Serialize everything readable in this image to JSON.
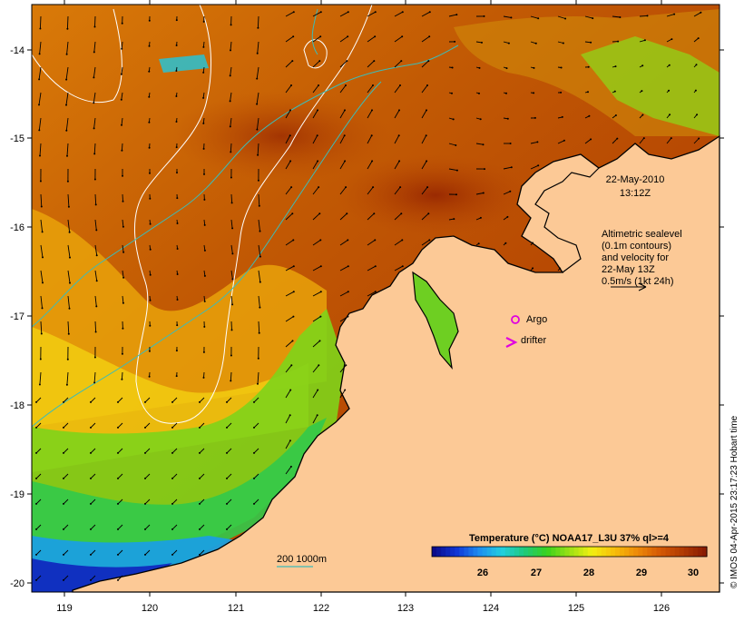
{
  "map": {
    "date_line1": "22-May-2010",
    "date_line2": "13:12Z",
    "altimetry_lines": [
      "Altimetric sealevel",
      "(0.1m contours)",
      "and velocity for",
      "22-May 13Z",
      "0.5m/s (1kt 24h)"
    ],
    "argo_label": "Argo",
    "drifter_label": "drifter",
    "depth_label": "200  1000m",
    "legend_title": "Temperature (°C) NOAA17_L3U 37% ql>=4",
    "legend_ticks": [
      "26",
      "27",
      "28",
      "29",
      "30"
    ],
    "legend_colors": [
      "#0b0b8a",
      "#1036d6",
      "#1e8ef0",
      "#22cfe0",
      "#1fc97a",
      "#38d21e",
      "#9be015",
      "#f2ef12",
      "#f7be0a",
      "#ee8a08",
      "#d55a05",
      "#b13b03",
      "#8a1c02"
    ],
    "credit": "© IMOS 04-Apr-2015 23:17:23 Hobart time",
    "x_ticks": [
      "119",
      "120",
      "121",
      "122",
      "123",
      "124",
      "125",
      "126"
    ],
    "y_ticks": [
      "-14",
      "-15",
      "-16",
      "-17",
      "-18",
      "-19",
      "-20"
    ],
    "colors": {
      "land": "#fcc996",
      "coast": "#000000",
      "contour_sealevel": "#ffffff",
      "contour_depth": "#3cbcb8",
      "argo": "#e000e0",
      "drifter": "#e000e0"
    }
  }
}
